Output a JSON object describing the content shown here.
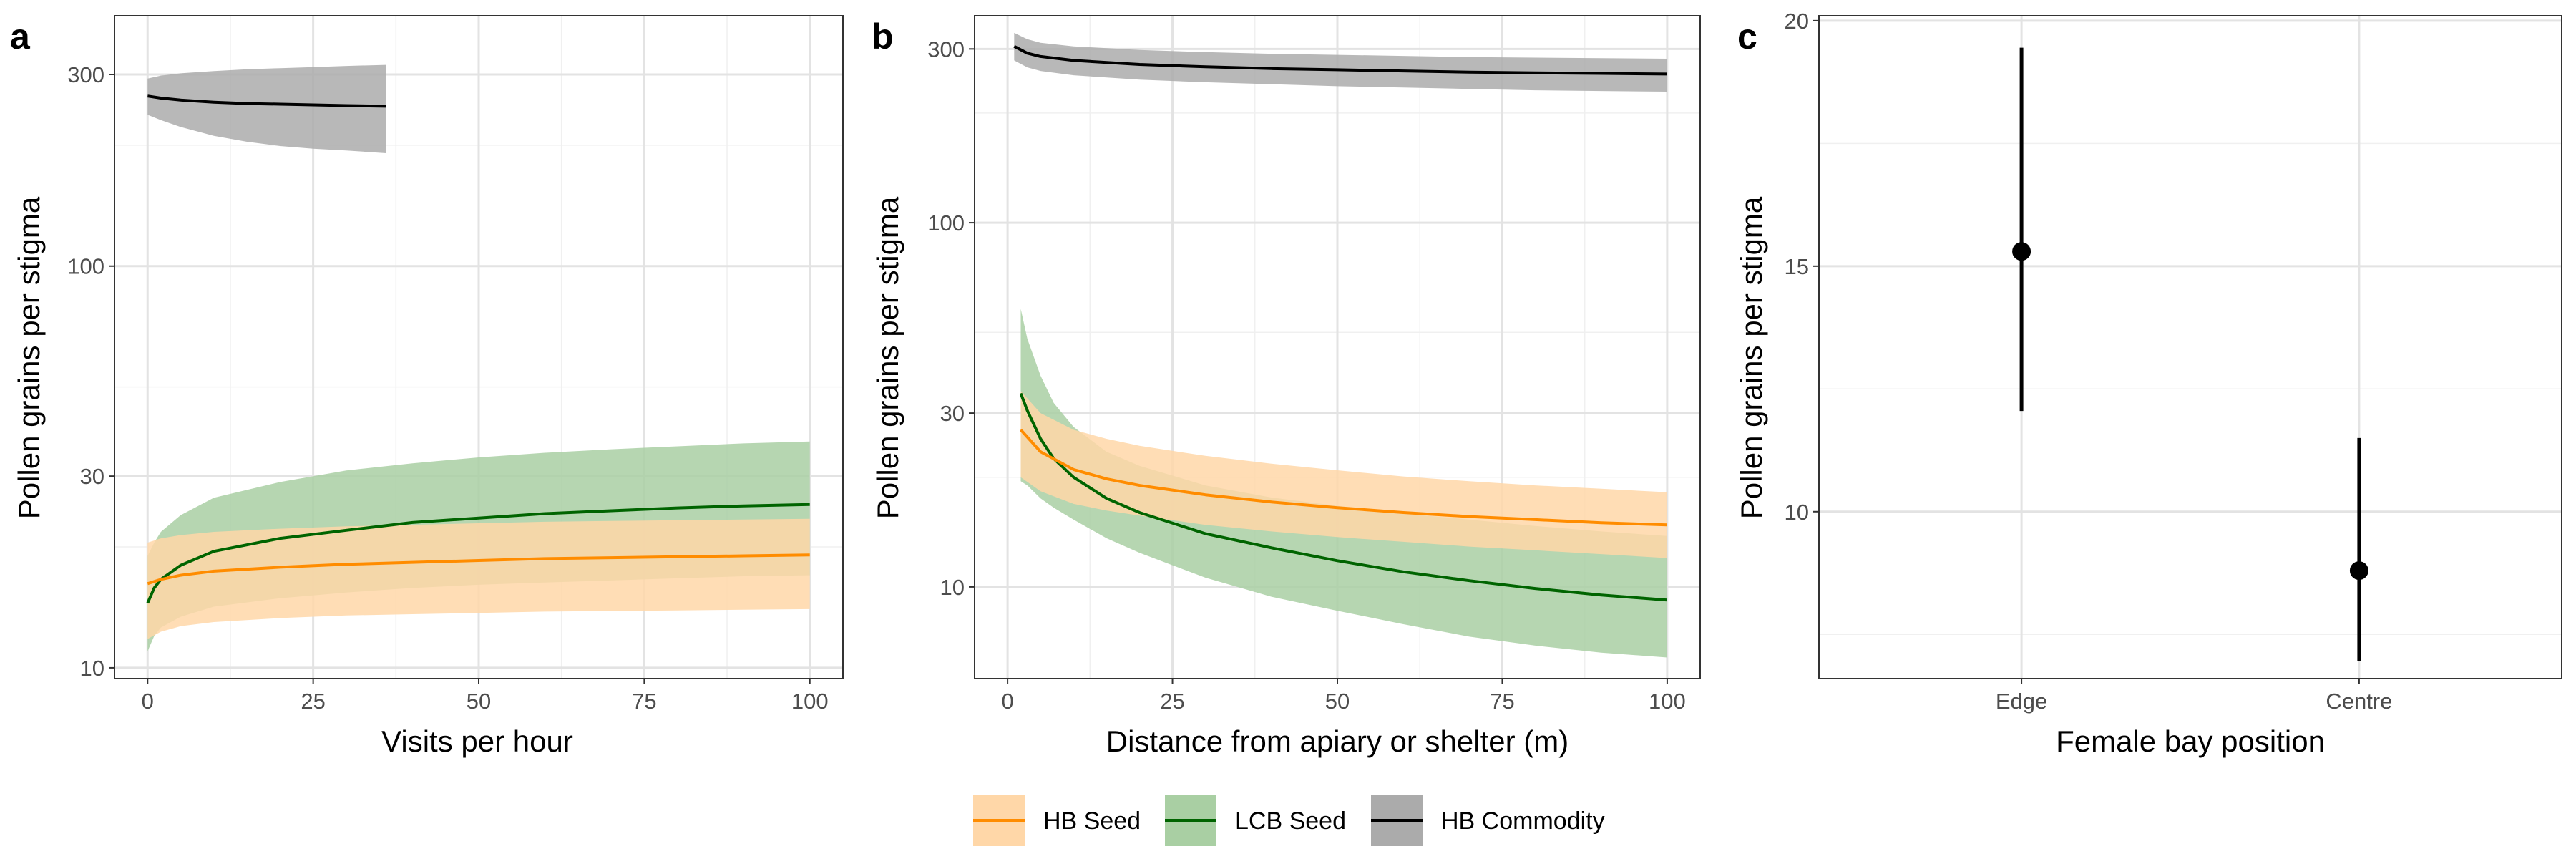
{
  "figure": {
    "panels": [
      {
        "letter": "a",
        "xlabel": "Visits per hour",
        "ylabel": "Pollen grains per stigma"
      },
      {
        "letter": "b",
        "xlabel": "Distance from apiary or shelter (m)",
        "ylabel": "Pollen grains per stigma"
      },
      {
        "letter": "c",
        "xlabel": "Female bay position",
        "ylabel": "Pollen grains per stigma"
      }
    ],
    "legend": [
      {
        "label": "HB Seed",
        "line_color": "#FF8C00",
        "fill_color": "#FFD7A8"
      },
      {
        "label": "LCB Seed",
        "line_color": "#006400",
        "fill_color": "#A9CFA3"
      },
      {
        "label": "HB Commodity",
        "line_color": "#000000",
        "fill_color": "#ABABAB"
      }
    ]
  },
  "chart_data": [
    {
      "type": "line",
      "panel": "a",
      "xlabel": "Visits per hour",
      "ylabel": "Pollen grains per stigma",
      "y_scale": "log",
      "xlim": [
        -5,
        105
      ],
      "ylim": [
        9.4,
        420
      ],
      "x_ticks": [
        0,
        25,
        50,
        75,
        100
      ],
      "y_ticks": [
        10,
        30,
        100,
        300
      ],
      "y_minor_ticks": [
        20,
        50,
        200
      ],
      "grid": true,
      "legend": "bottom",
      "series": [
        {
          "name": "HB Commodity",
          "color": "#000000",
          "fill": "#ABABAB",
          "x": [
            0,
            2,
            5,
            10,
            15,
            20,
            25,
            30,
            36
          ],
          "y": [
            265,
            262,
            259,
            256,
            254,
            253,
            252,
            251,
            250
          ],
          "lower": [
            238,
            231,
            222,
            211,
            204,
            199,
            196,
            194,
            191
          ],
          "upper": [
            293,
            298,
            302,
            306,
            309,
            311,
            313,
            315,
            317
          ]
        },
        {
          "name": "LCB Seed",
          "color": "#006400",
          "fill": "#A9CFA3",
          "x": [
            0,
            1,
            2,
            5,
            10,
            20,
            30,
            40,
            50,
            60,
            70,
            80,
            90,
            100
          ],
          "y": [
            14.5,
            15.8,
            16.6,
            18,
            19.5,
            21,
            22,
            23,
            23.6,
            24.2,
            24.6,
            25,
            25.3,
            25.5
          ],
          "lower": [
            11,
            12,
            12.6,
            13.4,
            14.2,
            14.9,
            15.4,
            15.8,
            16.1,
            16.3,
            16.5,
            16.7,
            16.9,
            17
          ],
          "upper": [
            19,
            20.5,
            21.8,
            24,
            26.5,
            29,
            31,
            32.3,
            33.4,
            34.3,
            35,
            35.6,
            36.2,
            36.6
          ]
        },
        {
          "name": "HB Seed",
          "color": "#FF8C00",
          "fill": "#FFD7A8",
          "x": [
            0,
            2,
            5,
            10,
            20,
            30,
            40,
            50,
            60,
            70,
            80,
            90,
            100
          ],
          "y": [
            16.2,
            16.6,
            17,
            17.4,
            17.8,
            18.1,
            18.3,
            18.5,
            18.7,
            18.8,
            18.9,
            19,
            19.1
          ],
          "lower": [
            11.8,
            12.3,
            12.7,
            13,
            13.3,
            13.5,
            13.6,
            13.7,
            13.8,
            13.85,
            13.9,
            13.95,
            14
          ],
          "upper": [
            20.5,
            21,
            21.4,
            21.8,
            22.2,
            22.5,
            22.7,
            22.9,
            23.1,
            23.2,
            23.3,
            23.4,
            23.5
          ]
        }
      ]
    },
    {
      "type": "line",
      "panel": "b",
      "xlabel": "Distance from apiary or shelter (m)",
      "ylabel": "Pollen grains per stigma",
      "y_scale": "log",
      "xlim": [
        -5,
        105
      ],
      "ylim": [
        5.6,
        370
      ],
      "x_ticks": [
        0,
        25,
        50,
        75,
        100
      ],
      "y_ticks": [
        10,
        30,
        100,
        300
      ],
      "y_minor_ticks": [
        20,
        50,
        200
      ],
      "grid": true,
      "legend": "bottom",
      "series": [
        {
          "name": "HB Commodity",
          "color": "#000000",
          "fill": "#ABABAB",
          "x": [
            1,
            3,
            5,
            10,
            20,
            30,
            40,
            50,
            60,
            70,
            80,
            90,
            100
          ],
          "y": [
            305,
            292,
            286,
            279,
            272,
            268,
            265,
            263,
            261,
            259,
            258,
            257,
            256
          ],
          "lower": [
            279,
            267,
            261,
            254,
            247,
            243,
            240,
            237,
            235,
            233,
            231,
            230,
            229
          ],
          "upper": [
            332,
            319,
            312,
            305,
            298,
            294,
            291,
            289,
            287,
            285,
            284,
            283,
            282
          ]
        },
        {
          "name": "LCB Seed",
          "color": "#006400",
          "fill": "#A9CFA3",
          "x": [
            2,
            3,
            5,
            7,
            10,
            15,
            20,
            30,
            40,
            50,
            60,
            70,
            80,
            90,
            100
          ],
          "y": [
            34,
            30.5,
            25.5,
            22.5,
            20,
            17.5,
            16,
            14,
            12.8,
            11.8,
            11,
            10.4,
            9.9,
            9.5,
            9.2
          ],
          "lower": [
            19.5,
            19,
            17.5,
            16.5,
            15.3,
            13.6,
            12.4,
            10.6,
            9.4,
            8.6,
            7.9,
            7.3,
            6.9,
            6.6,
            6.4
          ],
          "upper": [
            58,
            48,
            38,
            32,
            27.5,
            23.5,
            21.5,
            19,
            17.6,
            16.7,
            15.9,
            15.3,
            14.7,
            14.2,
            13.8
          ]
        },
        {
          "name": "HB Seed",
          "color": "#FF8C00",
          "fill": "#FFD7A8",
          "x": [
            2,
            5,
            10,
            15,
            20,
            30,
            40,
            50,
            60,
            70,
            80,
            90,
            100
          ],
          "y": [
            27,
            23.5,
            21,
            19.8,
            19,
            17.9,
            17.1,
            16.5,
            16,
            15.6,
            15.3,
            15,
            14.8
          ],
          "lower": [
            20,
            18.3,
            16.9,
            16.2,
            15.7,
            14.8,
            14.2,
            13.7,
            13.3,
            12.9,
            12.6,
            12.3,
            12
          ],
          "upper": [
            34.5,
            30,
            27,
            25.5,
            24.4,
            22.9,
            21.8,
            20.9,
            20.1,
            19.5,
            19,
            18.6,
            18.2
          ]
        }
      ]
    },
    {
      "type": "scatter",
      "panel": "c",
      "xlabel": "Female bay position",
      "ylabel": "Pollen grains per stigma",
      "categories": [
        "Edge",
        "Centre"
      ],
      "ylim": [
        6.6,
        20.1
      ],
      "y_ticks": [
        10,
        15,
        20
      ],
      "y_minor_ticks": [
        7.5,
        12.5,
        17.5
      ],
      "grid": true,
      "values": [
        15.3,
        8.8
      ],
      "lower": [
        12.05,
        6.95
      ],
      "upper": [
        19.45,
        11.5
      ]
    }
  ]
}
